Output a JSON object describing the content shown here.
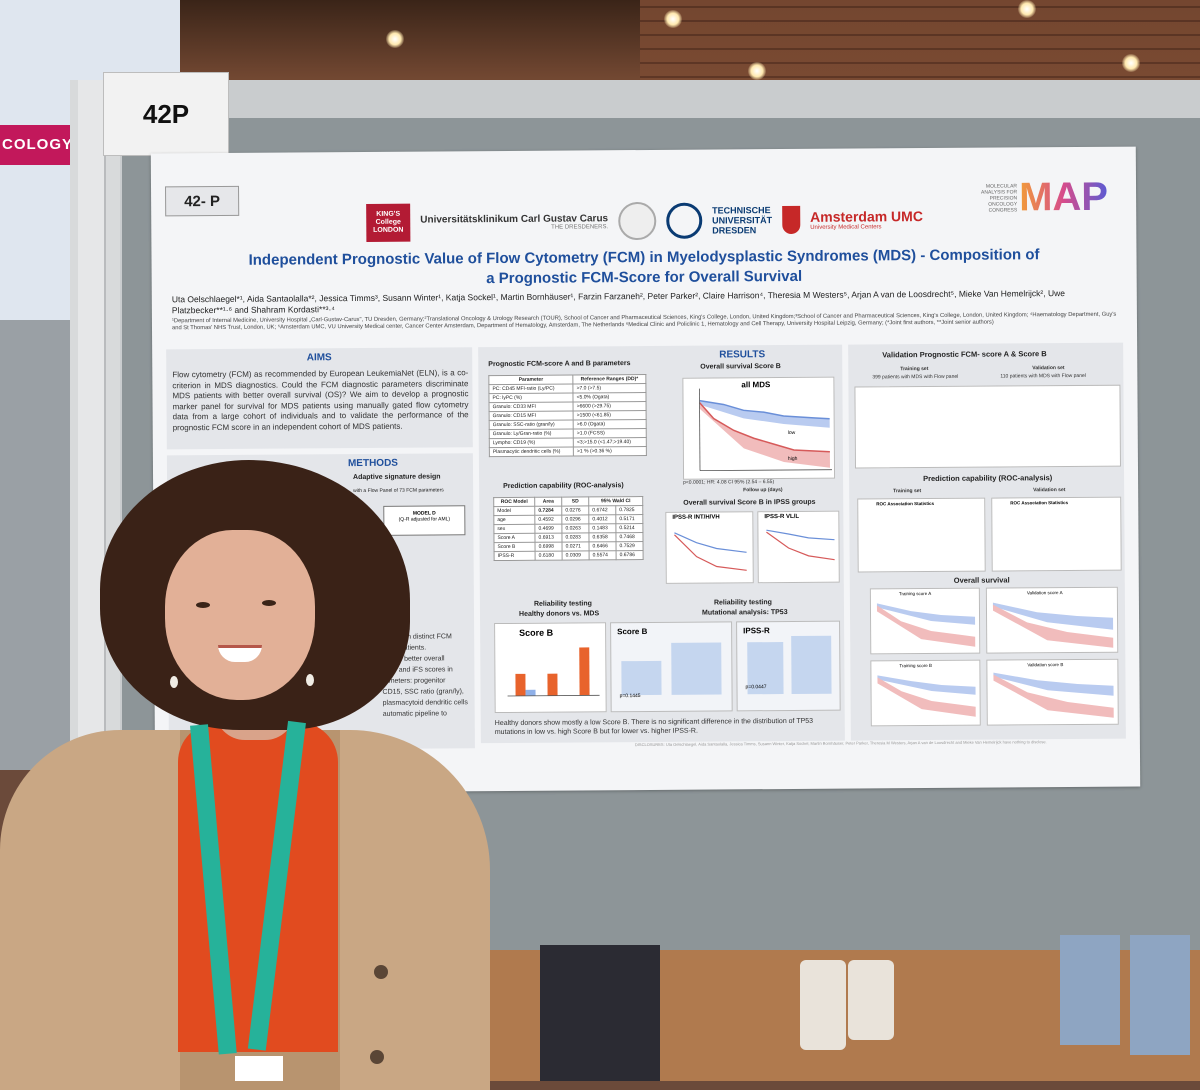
{
  "scene": {
    "board_id": "42P",
    "left_screen_text": "COLOGY"
  },
  "poster": {
    "poster_id": "42- P",
    "logos": {
      "kings": "KING'S\nCollege\nLONDON",
      "uk_dresden": "Universitätsklinikum Carl Gustav Carus",
      "uk_dresden_sub": "THE DRESDENERS.",
      "tud": "TECHNISCHE\nUNIVERSITÄT\nDRESDEN",
      "amsterdam": "Amsterdam UMC",
      "amsterdam_sub": "University Medical Centers",
      "map_small": "MOLECULAR\nANALYSIS FOR\nPRECISION\nONCOLOGY\nCONGRESS",
      "map_big": "MAP"
    },
    "title_line1": "Independent Prognostic Value of Flow Cytometry (FCM) in Myelodysplastic Syndromes (MDS) - Composition of",
    "title_line2": "a Prognostic FCM-Score for Overall Survival",
    "authors": "Uta Oelschlaegel*¹, Aida Santaolalla*², Jessica Timms³, Susann Winter¹, Katja Sockel¹, Martin Bornhäuser¹, Farzin Farzaneh², Peter Parker², Claire Harrison⁴, Theresia M Westers⁵, Arjan A van de Loosdrecht⁵, Mieke Van Hemelrijck², Uwe Platzbecker**¹·⁶ and Shahram Kordasti**³·⁴",
    "affiliations": "¹Department of Internal Medicine, University Hospital „Carl-Gustav-Carus\", TU Dresden, Germany;²Translational Oncology & Urology Research (TOUR), School of Cancer and Pharmaceutical Sciences, King's College, London, United Kingdom;³School of Cancer and Pharmaceutical Sciences, King's College, London, United Kingdom; ⁴Haematology Department, Guy's and St Thomas' NHS Trust, London, UK; ⁵Amsterdam UMC, VU University Medical center, Cancer Center Amsterdam, Department of Hematology, Amsterdam, The Netherlands ⁶Medical Clinic and Policlinic 1, Hematology and Cell Therapy, University Hospital Leipzig, Germany; (*Joint first authors, **Joint senior authors)",
    "aims": {
      "heading": "AIMS",
      "text": "Flow cytometry (FCM) as recommended by European LeukemiaNet (ELN), is a co-criterion in MDS diagnostics. Could the FCM diagnostic parameters discriminate MDS patients with better overall survival (OS)? We aim to develop a prognostic marker panel for survival for MDS patients using manually gated flow cytometry data from a large cohort of individuals and to validate the performance of the prognostic FCM score in an independent cohort of MDS patients."
    },
    "methods": {
      "heading": "METHODS",
      "line1": "Adaptive signature design",
      "line2": "with a Flow Panel of 73 FCM parameters",
      "model_d": "MODEL D",
      "model_d_sub": "(Q-R adjusted for AML)",
      "frag1": "based on distinct FCM",
      "frag2": "MDS patients.",
      "frag3": "ts with better overall",
      "frag4": "CSS and iFS scores in",
      "frag5": "rameters: progenitor",
      "frag6": "CD15, SSC ratio (gran/ly),",
      "frag7": "plasmacytoid dendritic cells",
      "frag8": "automatic pipeline to"
    },
    "results": {
      "heading": "RESULTS",
      "table1_title": "Prognostic FCM-score A and B parameters",
      "table1_headers": [
        "Parameter",
        "Reference Ranges (DD)*"
      ],
      "table1_rows": [
        [
          "PC: CD45 MFI-ratio (Ly/PC)",
          ">7.0 (>7.5)"
        ],
        [
          "PC: lyPC (%)",
          "<5.0% (Ogata)"
        ],
        [
          "Granulo: CD33 MFI",
          ">6600 (>29.75)"
        ],
        [
          "Granulo: CD15 MFI",
          ">1500 (<61.85)"
        ],
        [
          "Granulo: SSC-ratio (gran/ly)",
          ">6.0 (Ogata)"
        ],
        [
          "Granulo: Ly/Gran-ratio (%)",
          ">1.0 (FCSS)"
        ],
        [
          "Lympho: CD19 (%)",
          "<3;>15.0 (<1.47;>19.40)"
        ],
        [
          "Plasmacytic dendritic cells (%)",
          ">1 % (>0.36 %)"
        ]
      ],
      "os_title": "Overall survival Score B",
      "os_subtitle": "all MDS",
      "os_low": "low",
      "os_high": "high",
      "os_stat": "p<0.0001; HR: 4.08 CI 95% (2.54 – 6.55)",
      "os_xlabel": "Follow up (days)",
      "os_ylabel": "OS (%)",
      "pred_title": "Prediction capability (ROC-analysis)",
      "pred_headers": [
        "ROC Model",
        "Area",
        "SD",
        "95% Wald CI",
        ""
      ],
      "pred_rows": [
        [
          "Model",
          "0.7284",
          "0.0276",
          "0.6742",
          "0.7825"
        ],
        [
          "age",
          "0.4592",
          "0.0296",
          "0.4012",
          "0.5171"
        ],
        [
          "sex",
          "0.4699",
          "0.0263",
          "0.1483",
          "0.5214"
        ],
        [
          "Score A",
          "0.6913",
          "0.0283",
          "0.6358",
          "0.7468"
        ],
        [
          "Score B",
          "0.6998",
          "0.0271",
          "0.6466",
          "0.7529"
        ],
        [
          "IPSS-R",
          "0.6180",
          "0.0309",
          "0.5574",
          "0.6786"
        ]
      ],
      "ipss_title": "Overall survival Score B in IPSS groups",
      "ipss_left": "IPSS-R INT/H/VH",
      "ipss_right": "IPSS-R VL/L",
      "reliab1_title": "Reliability testing",
      "reliab1_sub": "Healthy donors vs. MDS",
      "reliab2_title": "Reliability testing",
      "reliab2_sub": "Mutational analysis: TP53",
      "scoreb_label": "Score B",
      "scoreb_p": "p=0.1445",
      "ipssr_label": "IPSS-R",
      "ipssr_p": "p=0.0447",
      "bottom_note": "Healthy donors show mostly a low Score B. There is no significant difference in the distribution of TP53 mutations in low vs. high Score B but for lower vs. higher IPSS-R."
    },
    "validation": {
      "title": "Validation Prognostic FCM- score A & Score B",
      "training": "Training set",
      "training_sub": "399 patients with MDS with Flow panel",
      "validation": "Validation set",
      "validation_sub": "110 patients with MDS with Flow panel",
      "pred_title": "Prediction capability (ROC-analysis)",
      "roc_stats": "ROC Association Statistics",
      "os_title": "Overall survival",
      "km_a_train": "Training score A",
      "km_a_valid": "Validation score A",
      "km_b_train": "Training score B",
      "km_b_valid": "Validation score B"
    },
    "disclosures": "DISCLOSURES: Uta Oelschlaegel, Aida Santaolalla, Jessica Timms, Susann Winter, Katja Sockel, Martin Bornhäuser, Peter Parker, Theresia M Westers, Arjan A van de Loosdrecht and Mieke Van Hemelrijck have nothing to disclose."
  },
  "colors": {
    "title_blue": "#1f4f9c",
    "km_blue": "#6a8fd8",
    "km_red": "#d65a5a",
    "bar_orange": "#e8632c",
    "lanyard": "#26b29a",
    "shirt": "#e14b1f",
    "coat": "#c9a784"
  }
}
